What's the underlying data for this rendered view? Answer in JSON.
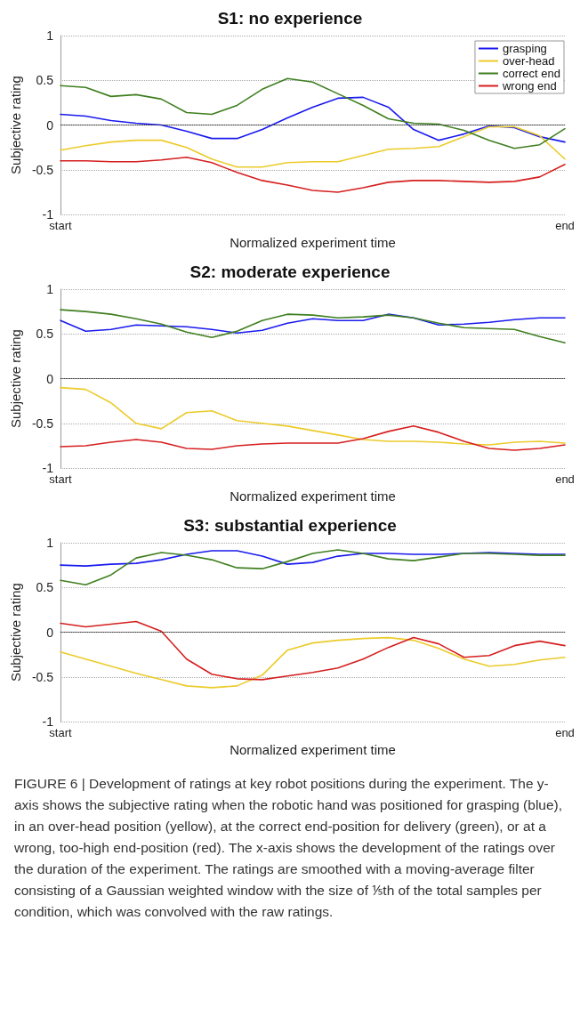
{
  "chart_data": [
    {
      "type": "line",
      "title": "S1: no experience",
      "xlabel": "Normalized experiment time",
      "ylabel": "Subjective rating",
      "categories": [
        "start",
        null,
        null,
        null,
        null,
        null,
        null,
        null,
        null,
        null,
        null,
        null,
        null,
        null,
        null,
        null,
        null,
        null,
        null,
        null,
        "end"
      ],
      "series": [
        {
          "name": "grasping",
          "color": "#1a1aef",
          "values": [
            0.12,
            0.1,
            0.05,
            0.02,
            0.0,
            -0.07,
            -0.15,
            -0.15,
            -0.05,
            0.08,
            0.2,
            0.3,
            0.31,
            0.2,
            -0.05,
            -0.17,
            -0.1,
            -0.01,
            -0.03,
            -0.13,
            -0.19
          ]
        },
        {
          "name": "over-head",
          "color": "#eccb2a",
          "values": [
            -0.28,
            -0.23,
            -0.19,
            -0.17,
            -0.17,
            -0.25,
            -0.38,
            -0.47,
            -0.47,
            -0.42,
            -0.41,
            -0.41,
            -0.34,
            -0.27,
            -0.26,
            -0.24,
            -0.13,
            -0.02,
            -0.02,
            -0.12,
            -0.38
          ]
        },
        {
          "name": "correct end",
          "color": "#3f7f1f",
          "values": [
            0.44,
            0.42,
            0.32,
            0.34,
            0.29,
            0.14,
            0.12,
            0.22,
            0.4,
            0.52,
            0.48,
            0.35,
            0.22,
            0.07,
            0.02,
            0.01,
            -0.06,
            -0.17,
            -0.26,
            -0.22,
            -0.04
          ]
        },
        {
          "name": "wrong end",
          "color": "#d61f1f",
          "values": [
            -0.4,
            -0.4,
            -0.41,
            -0.41,
            -0.39,
            -0.36,
            -0.42,
            -0.53,
            -0.62,
            -0.67,
            -0.73,
            -0.75,
            -0.7,
            -0.64,
            -0.62,
            -0.62,
            -0.63,
            -0.64,
            -0.63,
            -0.58,
            -0.44
          ]
        }
      ],
      "ylim": [
        -1,
        1
      ],
      "yticks": [
        -1,
        -0.5,
        0,
        0.5,
        1
      ],
      "grid": "y",
      "legend": "top right",
      "marker": "none",
      "line_style": "solid",
      "ref_lines": [
        {
          "axis": "y",
          "value": 0,
          "label": null,
          "line_style": "dotted",
          "color": "#333333"
        }
      ]
    },
    {
      "type": "line",
      "title": "S2: moderate experience",
      "xlabel": "Normalized experiment time",
      "ylabel": "Subjective rating",
      "categories": [
        "start",
        null,
        null,
        null,
        null,
        null,
        null,
        null,
        null,
        null,
        null,
        null,
        null,
        null,
        null,
        null,
        null,
        null,
        null,
        null,
        "end"
      ],
      "series": [
        {
          "color": "#1a1aef",
          "values": [
            0.65,
            0.53,
            0.55,
            0.6,
            0.59,
            0.58,
            0.55,
            0.51,
            0.54,
            0.62,
            0.67,
            0.65,
            0.65,
            0.72,
            0.68,
            0.6,
            0.61,
            0.63,
            0.66,
            0.68,
            0.68
          ]
        },
        {
          "color": "#eccb2a",
          "values": [
            -0.1,
            -0.12,
            -0.27,
            -0.5,
            -0.56,
            -0.38,
            -0.36,
            -0.47,
            -0.5,
            -0.53,
            -0.58,
            -0.63,
            -0.68,
            -0.7,
            -0.7,
            -0.71,
            -0.73,
            -0.74,
            -0.71,
            -0.7,
            -0.72
          ]
        },
        {
          "color": "#3f7f1f",
          "values": [
            0.77,
            0.75,
            0.72,
            0.67,
            0.61,
            0.52,
            0.46,
            0.53,
            0.65,
            0.72,
            0.71,
            0.68,
            0.69,
            0.71,
            0.68,
            0.62,
            0.57,
            0.56,
            0.55,
            0.47,
            0.4
          ]
        },
        {
          "color": "#d61f1f",
          "values": [
            -0.76,
            -0.75,
            -0.71,
            -0.68,
            -0.71,
            -0.78,
            -0.79,
            -0.75,
            -0.73,
            -0.72,
            -0.72,
            -0.72,
            -0.67,
            -0.59,
            -0.53,
            -0.6,
            -0.7,
            -0.78,
            -0.8,
            -0.78,
            -0.74
          ]
        }
      ],
      "ylim": [
        -1,
        1
      ],
      "yticks": [
        -1,
        -0.5,
        0,
        0.5,
        1
      ],
      "grid": "y",
      "marker": "none",
      "line_style": "solid",
      "ref_lines": [
        {
          "axis": "y",
          "value": 0,
          "label": null,
          "line_style": "dotted",
          "color": "#333333"
        }
      ]
    },
    {
      "type": "line",
      "title": "S3: substantial experience",
      "xlabel": "Normalized experiment time",
      "ylabel": "Subjective rating",
      "categories": [
        "start",
        null,
        null,
        null,
        null,
        null,
        null,
        null,
        null,
        null,
        null,
        null,
        null,
        null,
        null,
        null,
        null,
        null,
        null,
        null,
        "end"
      ],
      "series": [
        {
          "color": "#1a1aef",
          "values": [
            0.75,
            0.74,
            0.76,
            0.77,
            0.81,
            0.87,
            0.91,
            0.91,
            0.85,
            0.76,
            0.78,
            0.85,
            0.88,
            0.88,
            0.87,
            0.87,
            0.88,
            0.89,
            0.88,
            0.87,
            0.87
          ]
        },
        {
          "color": "#eccb2a",
          "values": [
            -0.22,
            -0.3,
            -0.38,
            -0.46,
            -0.53,
            -0.6,
            -0.62,
            -0.6,
            -0.48,
            -0.2,
            -0.12,
            -0.09,
            -0.07,
            -0.06,
            -0.09,
            -0.18,
            -0.3,
            -0.38,
            -0.36,
            -0.31,
            -0.28
          ]
        },
        {
          "color": "#3f7f1f",
          "values": [
            0.58,
            0.53,
            0.64,
            0.83,
            0.89,
            0.86,
            0.81,
            0.72,
            0.71,
            0.79,
            0.88,
            0.92,
            0.88,
            0.82,
            0.8,
            0.84,
            0.88,
            0.88,
            0.87,
            0.86,
            0.86
          ]
        },
        {
          "color": "#d61f1f",
          "values": [
            0.1,
            0.06,
            0.09,
            0.12,
            0.01,
            -0.3,
            -0.47,
            -0.52,
            -0.53,
            -0.49,
            -0.45,
            -0.4,
            -0.3,
            -0.17,
            -0.06,
            -0.13,
            -0.28,
            -0.26,
            -0.15,
            -0.1,
            -0.15
          ]
        }
      ],
      "ylim": [
        -1,
        1
      ],
      "yticks": [
        -1,
        -0.5,
        0,
        0.5,
        1
      ],
      "grid": "y",
      "marker": "none",
      "line_style": "solid",
      "ref_lines": [
        {
          "axis": "y",
          "value": 0,
          "label": null,
          "line_style": "dotted",
          "color": "#333333"
        }
      ],
      "annotations": [
        "FIGURE 6 | Development of ratings at key robot positions during the experiment. The y-axis shows the subjective rating when the robotic hand was positioned for grasping (blue), in an over-head position (yellow), at the correct end-position for delivery (green), or at a wrong, too-high end-position (red). The x-axis shows the development of the ratings over the duration of the experiment. The ratings are smoothed with a moving-average filter consisting of a Gaussian weighted window with the size of ⅕th of the total samples per condition, which was convolved with the raw ratings."
      ]
    }
  ]
}
